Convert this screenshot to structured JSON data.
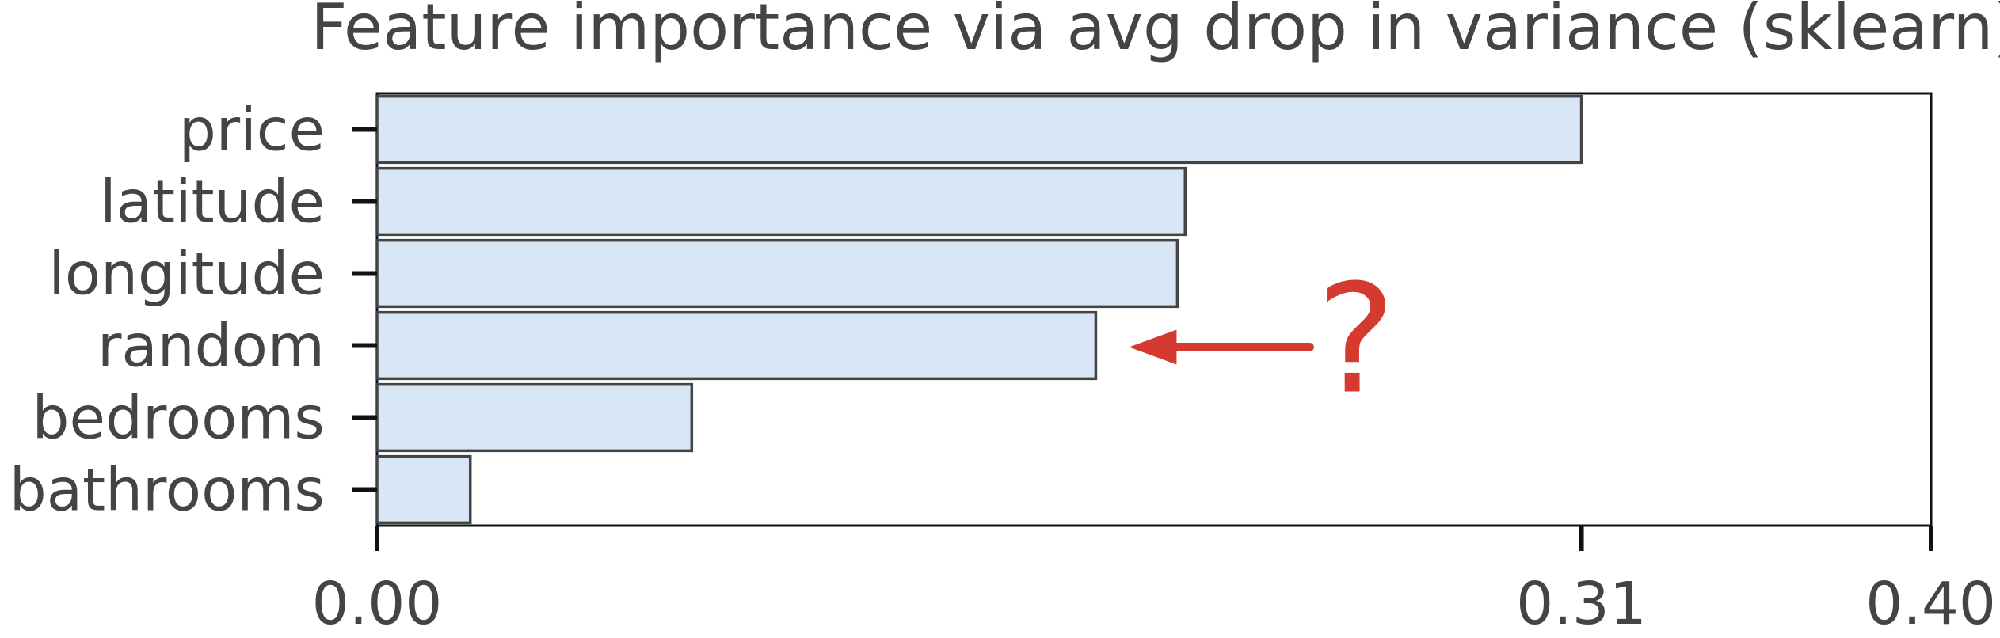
{
  "chart_data": {
    "type": "bar",
    "orientation": "horizontal",
    "title": "Feature importance via avg drop in variance (sklearn)",
    "categories": [
      "price",
      "latitude",
      "longitude",
      "random",
      "bedrooms",
      "bathrooms"
    ],
    "values": [
      0.31,
      0.208,
      0.206,
      0.185,
      0.081,
      0.024
    ],
    "xlim": [
      0,
      0.4
    ],
    "xticks": [
      "0.00",
      "0.31",
      "0.40"
    ],
    "xlabel": "",
    "ylabel": "",
    "grid": false,
    "legend": "none",
    "colors": {
      "bar_fill": "#d9e6f5",
      "bar_edge": "#444444",
      "axis": "#111111",
      "annotation": "#d43a2f"
    },
    "annotation": {
      "text": "?",
      "target": "random"
    }
  }
}
